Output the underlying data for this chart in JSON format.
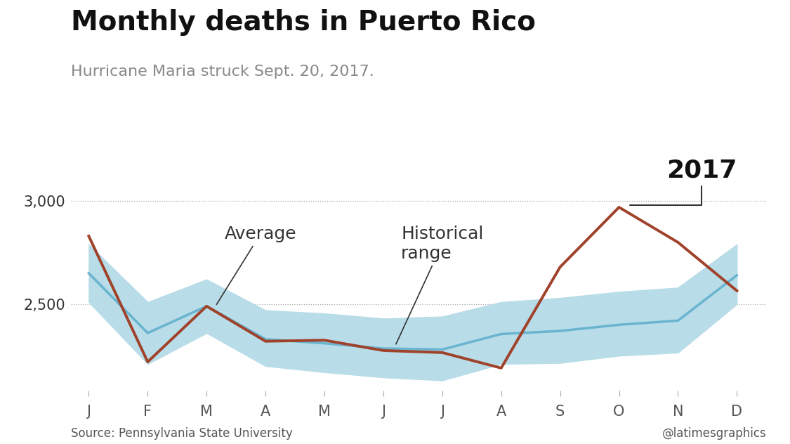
{
  "title": "Monthly deaths in Puerto Rico",
  "subtitle": "Hurricane Maria struck Sept. 20, 2017.",
  "source": "Source: Pennsylvania State University",
  "credit": "@latimesgraphics",
  "months": [
    "J",
    "F",
    "M",
    "A",
    "M",
    "J",
    "J",
    "A",
    "S",
    "O",
    "N",
    "D"
  ],
  "avg_line": [
    2650,
    2360,
    2490,
    2330,
    2310,
    2285,
    2280,
    2355,
    2370,
    2400,
    2420,
    2640
  ],
  "range_upper": [
    2790,
    2510,
    2620,
    2470,
    2455,
    2430,
    2440,
    2510,
    2530,
    2560,
    2580,
    2790
  ],
  "range_lower": [
    2510,
    2210,
    2360,
    2200,
    2170,
    2145,
    2130,
    2210,
    2215,
    2250,
    2265,
    2500
  ],
  "line_2017": [
    2830,
    2220,
    2490,
    2320,
    2325,
    2275,
    2265,
    2190,
    2680,
    2970,
    2800,
    2565
  ],
  "ylim": [
    2080,
    3200
  ],
  "yticks": [
    2500,
    3000
  ],
  "avg_color": "#6ab4d0",
  "range_color": "#b8dce8",
  "line2017_color": "#a0412a",
  "background_color": "#ffffff",
  "title_fontsize": 28,
  "subtitle_fontsize": 16,
  "tick_fontsize": 15,
  "annotation_2017_label": "2017",
  "annotation_avg_label": "Average",
  "annotation_hist_label": "Historical\nrange",
  "annot_fontsize": 18,
  "annot_2017_fontsize": 26
}
